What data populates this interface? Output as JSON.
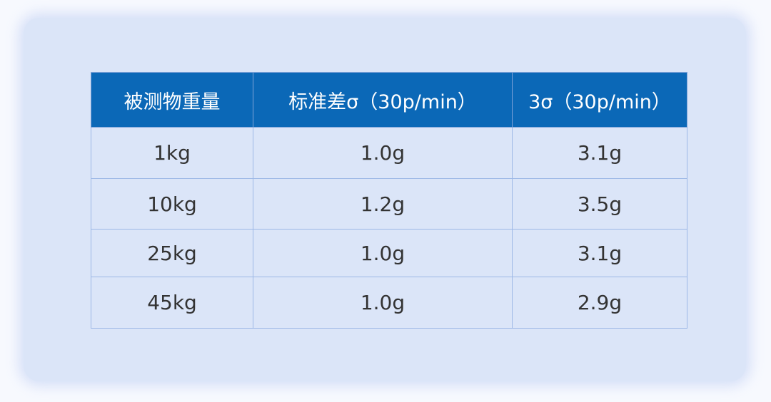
{
  "table": {
    "headers": [
      "被测物重量",
      "标准差σ（30p/min）",
      "3σ（30p/min）"
    ],
    "rows": [
      [
        "1kg",
        "1.0g",
        "3.1g"
      ],
      [
        "10kg",
        "1.2g",
        "3.5g"
      ],
      [
        "25kg",
        "1.0g",
        "3.1g"
      ],
      [
        "45kg",
        "1.0g",
        "2.9g"
      ]
    ]
  },
  "colors": {
    "header_bg": "#0b68b7",
    "card_bg": "#dbe5f8"
  }
}
